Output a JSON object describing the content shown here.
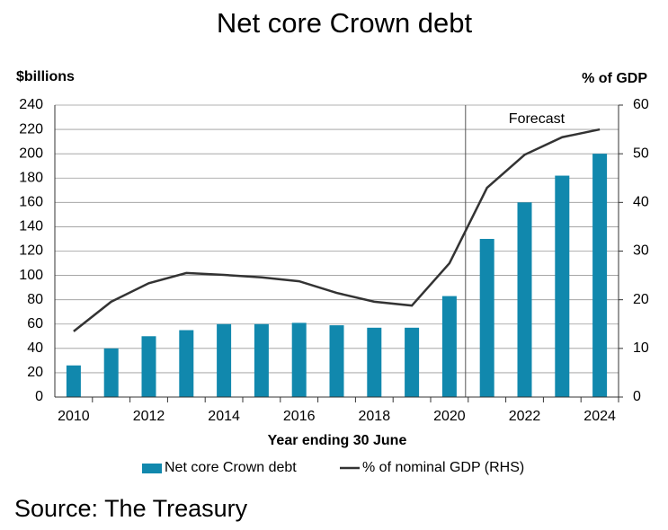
{
  "chart_data": {
    "type": "bar",
    "title": "Net core Crown debt",
    "y_label": "$billions",
    "y2_label": "% of GDP",
    "x_label": "Year ending 30 June",
    "annotation": "Forecast",
    "categories": [
      "2010",
      null,
      "2012",
      null,
      "2014",
      null,
      "2016",
      null,
      "2018",
      null,
      "2020",
      null,
      "2022",
      null,
      "2024"
    ],
    "series": [
      {
        "name": "Net core Crown debt",
        "type": "bar",
        "color": "#1188ad",
        "values": [
          26,
          40,
          50,
          55,
          60,
          60,
          61,
          59,
          57,
          57,
          83,
          130,
          160,
          182,
          200
        ]
      },
      {
        "name": "% of nominal GDP (RHS)",
        "type": "line",
        "axis": "y2",
        "color": "#333333",
        "values": [
          13.5,
          19.6,
          23.4,
          25.5,
          25.1,
          24.6,
          23.8,
          21.4,
          19.6,
          18.8,
          27.5,
          43.0,
          49.8,
          53.4,
          55.0
        ]
      }
    ],
    "ylim": [
      0,
      240
    ],
    "yticks": [
      0,
      20,
      40,
      60,
      80,
      100,
      120,
      140,
      160,
      180,
      200,
      220,
      240
    ],
    "y2lim": [
      0,
      60
    ],
    "y2ticks": [
      0,
      10,
      20,
      30,
      40,
      50,
      60
    ],
    "grid": true,
    "legend": "bottom"
  },
  "source": "Source: The Treasury"
}
